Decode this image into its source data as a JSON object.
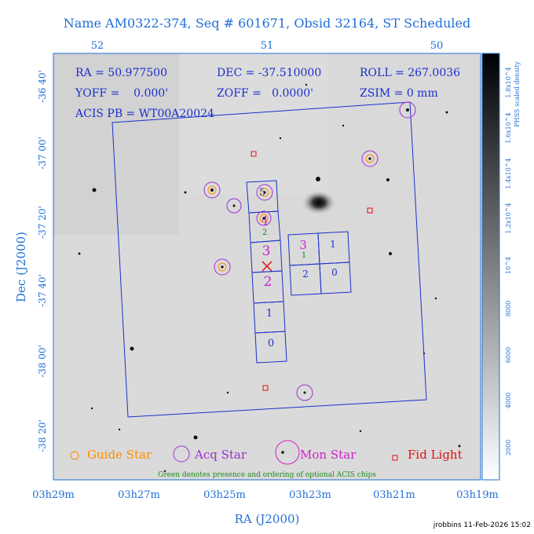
{
  "title": "Name AM0322-374, Seq # 601671, Obsid 32164, ST Scheduled",
  "top_ticks": [
    "52",
    "51",
    "50"
  ],
  "left_ticks": [
    "-36 40'",
    "-37 00'",
    "-37 20'",
    "-37 40'",
    "-38 00'",
    "-38 20'"
  ],
  "bottom_ticks": [
    "03h29m",
    "03h27m",
    "03h25m",
    "03h23m",
    "03h21m",
    "03h19m"
  ],
  "xlabel": "RA (J2000)",
  "ylabel": "Dec (J2000)",
  "info": {
    "ra": "RA = 50.977500",
    "dec": "DEC = -37.510000",
    "roll": "ROLL = 267.0036",
    "yoff": "YOFF =    0.000'",
    "zoff": "ZOFF =   0.0000'",
    "zsim": "ZSIM = 0 mm",
    "acis_pb": "ACIS PB = WT00A20024"
  },
  "chips_s": [
    "5",
    "4",
    "3",
    "2",
    "1",
    "0"
  ],
  "chips_i": [
    "3",
    "1",
    "2",
    "0"
  ],
  "optional_labels": [
    "2",
    "1"
  ],
  "legend": {
    "guide": "Guide Star",
    "acq": "Acq Star",
    "mon": "Mon Star",
    "fid": "Fid Light",
    "note": "Green denotes presence and ordering of optional ACIS chips"
  },
  "colorbar": {
    "label": "PHSS scaled density",
    "ticks": [
      "2000",
      "4000",
      "6000",
      "8000",
      "10^4",
      "1.2x10^4",
      "1.4x10^4",
      "1.6x10^4",
      "1.8x10^4"
    ]
  },
  "footer": "jrobbins 11-Feb-2026 15:02",
  "colors": {
    "text": "#1f6fd6",
    "guide": "#ff8c00",
    "acq": "#9b30d0",
    "mon": "#cc22cc",
    "fid": "#e01010",
    "optional": "#1a8a1a",
    "frame": "#1a2fcc"
  }
}
